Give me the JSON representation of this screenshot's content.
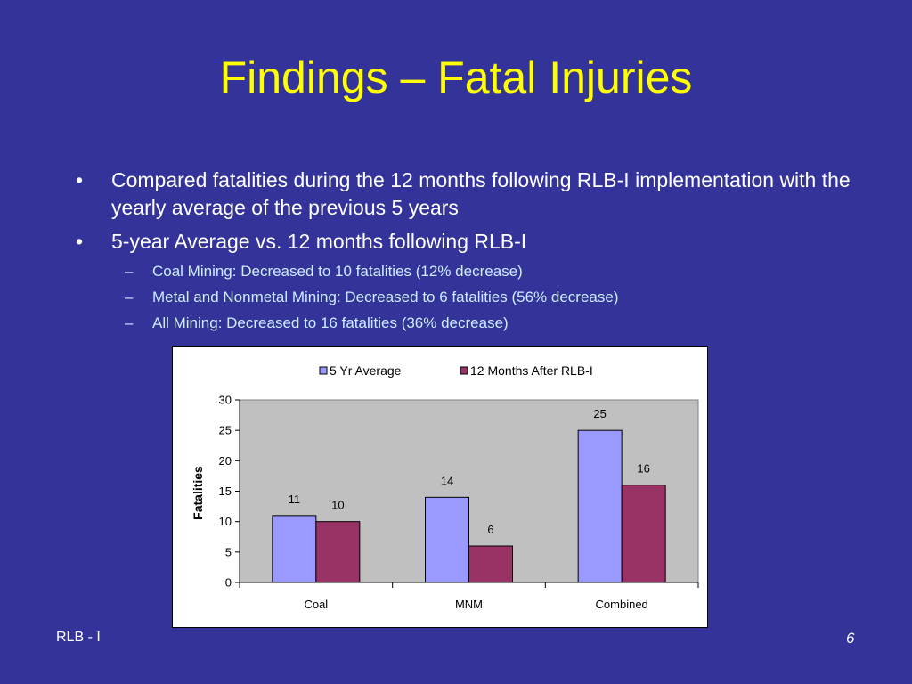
{
  "slide": {
    "title": "Findings – Fatal Injuries",
    "bullets": [
      {
        "text": "Compared fatalities during the 12 months following RLB-I implementation with the yearly average of the previous 5 years"
      },
      {
        "text": "5-year Average vs. 12 months following RLB-I"
      }
    ],
    "sub_bullets": [
      "Coal Mining: Decreased to 10 fatalities (12% decrease)",
      "Metal and Nonmetal Mining: Decreased to 6 fatalities (56% decrease)",
      "All Mining: Decreased to 16 fatalities (36% decrease)"
    ],
    "bullet_symbol": "•",
    "dash_symbol": "–",
    "footer_left": "RLB - I",
    "page_number": "6"
  },
  "colors": {
    "background": "#333399",
    "title": "#ffff00",
    "text": "#ffffff",
    "sub_text": "#ccecff",
    "plot_area": "#c0c0c0"
  },
  "chart_data": {
    "type": "bar",
    "categories": [
      "Coal",
      "MNM",
      "Combined"
    ],
    "series": [
      {
        "name": "5 Yr Average",
        "values": [
          11,
          14,
          25
        ],
        "color": "#9999ff"
      },
      {
        "name": "12 Months After RLB-I",
        "values": [
          10,
          6,
          16
        ],
        "color": "#993366"
      }
    ],
    "data_labels": [
      [
        "11",
        "14",
        "25"
      ],
      [
        "10",
        "6",
        "16"
      ]
    ],
    "title": "",
    "xlabel": "",
    "ylabel": "Fatalities",
    "ylim": [
      0,
      30
    ],
    "yticks": [
      0,
      5,
      10,
      15,
      20,
      25,
      30
    ],
    "grid": false,
    "legend": "top"
  }
}
